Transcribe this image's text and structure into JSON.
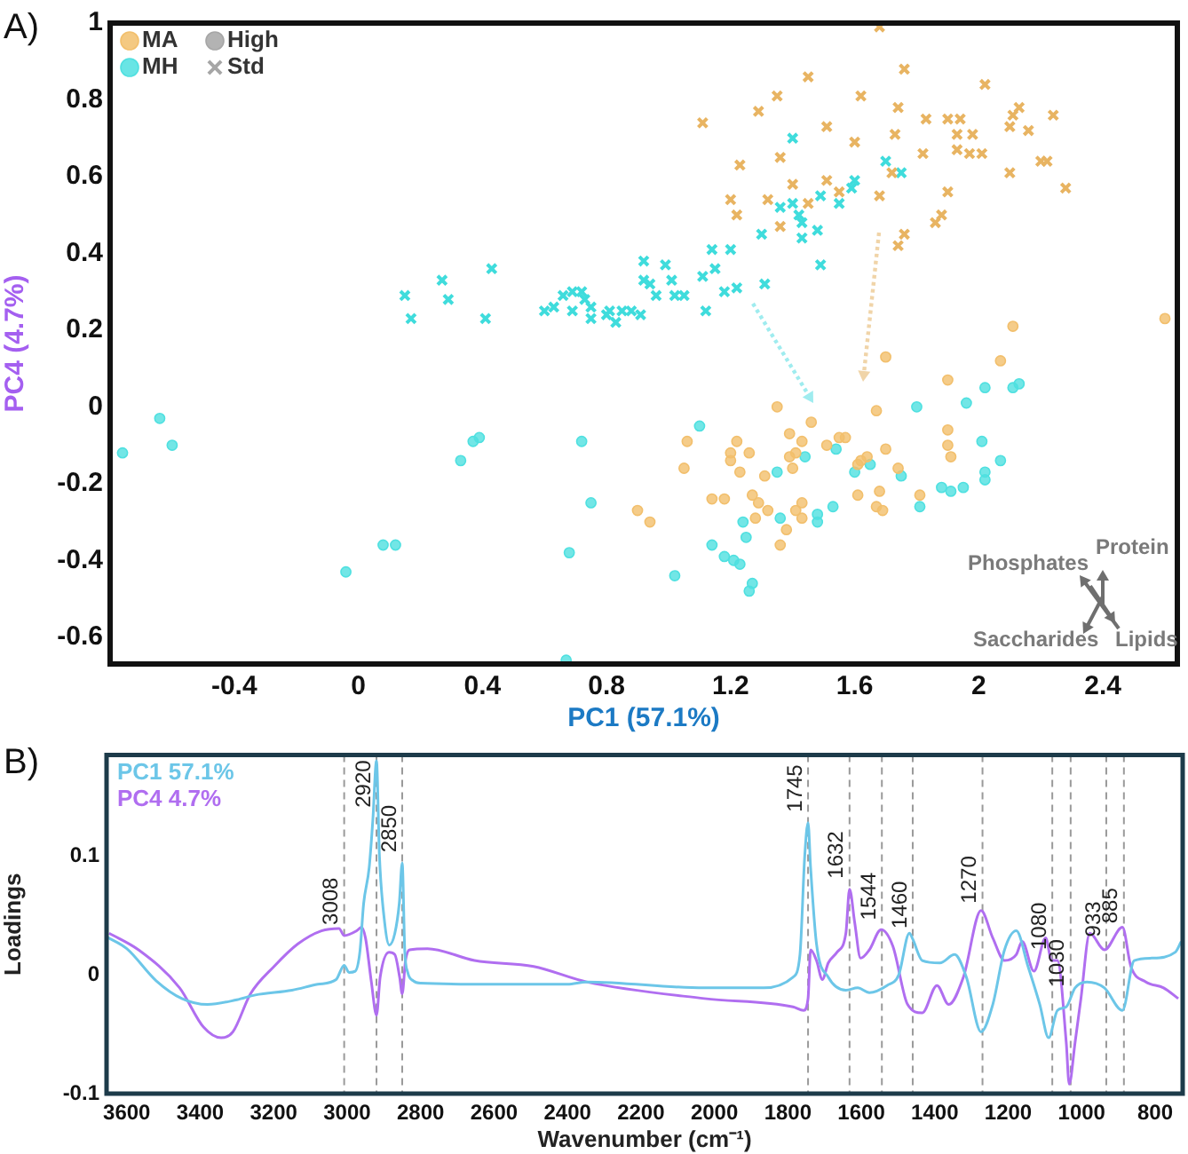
{
  "chart_data": [
    {
      "type": "scatter",
      "title": "A)",
      "xlabel": "PC1 (57.1%)",
      "ylabel": "PC4 (4.7%)",
      "xlim": [
        -0.8,
        2.64
      ],
      "ylim": [
        -0.67,
        1.0
      ],
      "xticks": [
        -0.4,
        0,
        0.4,
        0.8,
        1.2,
        1.6,
        2,
        2.4
      ],
      "yticks": [
        -0.6,
        -0.4,
        -0.2,
        0,
        0.2,
        0.4,
        0.6,
        0.8,
        1
      ],
      "grid": false,
      "legend": "top left",
      "annotations": [
        "Phosphates",
        "Protein",
        "Saccharides",
        "Lipids"
      ],
      "series": [
        {
          "name": "MA",
          "color": "#f2bf6c",
          "marker": "circle",
          "x": [
            1.06,
            1.05,
            1.2,
            1.26,
            1.23,
            1.31,
            1.18,
            1.57,
            1.55,
            1.7,
            2.07,
            1.9,
            1.67,
            1.35,
            1.46,
            1.39,
            2.6,
            2.11,
            1.41,
            1.43,
            1.51,
            1.39,
            1.4,
            1.64,
            1.62,
            1.61,
            1.7,
            1.74,
            1.9,
            1.9,
            1.91,
            1.22,
            1.2,
            1.14,
            1.27,
            1.29,
            1.32,
            1.28,
            1.38,
            1.41,
            1.43,
            1.43,
            1.61,
            1.68,
            1.67,
            1.69,
            1.81,
            0.9,
            0.94,
            1.36
          ],
          "values": [
            -0.09,
            -0.16,
            -0.12,
            -0.12,
            -0.17,
            -0.18,
            -0.24,
            -0.08,
            -0.08,
            0.13,
            0.12,
            0.07,
            -0.01,
            0.0,
            -0.04,
            -0.07,
            0.23,
            0.21,
            -0.12,
            -0.09,
            -0.1,
            -0.13,
            -0.16,
            -0.13,
            -0.14,
            -0.15,
            -0.11,
            -0.16,
            -0.06,
            -0.1,
            -0.13,
            -0.09,
            -0.14,
            -0.24,
            -0.23,
            -0.25,
            -0.27,
            -0.29,
            -0.32,
            -0.27,
            -0.29,
            -0.25,
            -0.23,
            -0.22,
            -0.26,
            -0.27,
            -0.23,
            -0.27,
            -0.3,
            -0.36
          ]
        },
        {
          "name": "MH",
          "color": "#4fe0e0",
          "marker": "circle",
          "x": [
            -0.76,
            -0.64,
            -0.6,
            0.33,
            0.37,
            0.39,
            0.72,
            0.08,
            0.12,
            -0.04,
            0.75,
            0.68,
            0.67,
            1.1,
            1.35,
            1.44,
            1.54,
            1.6,
            1.65,
            1.75,
            1.8,
            1.96,
            2.02,
            2.11,
            2.13,
            2.01,
            2.02,
            2.07,
            2.02,
            1.95,
            1.91,
            1.88,
            1.81,
            1.53,
            1.48,
            1.48,
            1.36,
            1.24,
            1.25,
            1.14,
            1.18,
            1.21,
            1.23,
            1.02,
            1.27,
            1.26
          ],
          "values": [
            -0.12,
            -0.03,
            -0.1,
            -0.14,
            -0.09,
            -0.08,
            -0.09,
            -0.36,
            -0.36,
            -0.43,
            -0.25,
            -0.38,
            -0.66,
            -0.05,
            -0.17,
            -0.13,
            -0.11,
            -0.17,
            -0.15,
            -0.18,
            0.0,
            0.01,
            0.05,
            0.05,
            0.06,
            -0.09,
            -0.17,
            -0.14,
            -0.19,
            -0.21,
            -0.22,
            -0.21,
            -0.26,
            -0.26,
            -0.28,
            -0.3,
            -0.29,
            -0.3,
            -0.34,
            -0.36,
            -0.39,
            -0.4,
            -0.41,
            -0.44,
            -0.46,
            -0.48
          ]
        },
        {
          "color": "#e8b462",
          "marker": "cross",
          "x": [
            1.68,
            1.82,
            1.9,
            1.94,
            1.93,
            1.98,
            1.9,
            2.01,
            2.1,
            2.13,
            2.16,
            2.1,
            2.2,
            1.76,
            1.45,
            1.35,
            1.62,
            1.11,
            1.29,
            1.51,
            1.74,
            1.83,
            2.02,
            2.24,
            1.6,
            1.73,
            1.36,
            1.23,
            1.93,
            1.97,
            1.72,
            1.51,
            1.4,
            1.2,
            1.32,
            1.45,
            1.55,
            1.68,
            1.22,
            1.36,
            1.88,
            1.86,
            1.76,
            1.74,
            2.28,
            2.22,
            2.11
          ],
          "values": [
            0.99,
            0.66,
            0.75,
            0.75,
            0.71,
            0.71,
            0.56,
            0.66,
            0.73,
            0.78,
            0.72,
            0.61,
            0.64,
            0.88,
            0.86,
            0.81,
            0.81,
            0.74,
            0.77,
            0.73,
            0.78,
            0.75,
            0.84,
            0.76,
            0.69,
            0.71,
            0.65,
            0.63,
            0.67,
            0.66,
            0.61,
            0.59,
            0.58,
            0.54,
            0.54,
            0.53,
            0.56,
            0.55,
            0.5,
            0.47,
            0.5,
            0.48,
            0.45,
            0.42,
            0.57,
            0.64,
            0.76
          ]
        },
        {
          "color": "#3fdcdc",
          "marker": "cross",
          "x": [
            0.15,
            0.17,
            0.27,
            0.29,
            0.43,
            0.41,
            0.6,
            0.63,
            0.66,
            0.69,
            0.72,
            0.69,
            0.73,
            0.75,
            0.75,
            0.81,
            0.83,
            0.94,
            0.96,
            1.02,
            1.3,
            1.4,
            1.43,
            1.43,
            1.48,
            1.49,
            1.59,
            1.6,
            1.75,
            1.42,
            0.8,
            0.85,
            0.88,
            0.91,
            0.92,
            0.92,
            0.99,
            1.01,
            1.05,
            1.11,
            1.12,
            1.14,
            1.15,
            1.18,
            1.2,
            1.22,
            1.31,
            1.36,
            1.4,
            1.49,
            1.55,
            1.7
          ],
          "values": [
            0.29,
            0.23,
            0.33,
            0.28,
            0.36,
            0.23,
            0.25,
            0.26,
            0.29,
            0.3,
            0.3,
            0.25,
            0.28,
            0.26,
            0.23,
            0.25,
            0.22,
            0.32,
            0.29,
            0.29,
            0.45,
            0.53,
            0.48,
            0.44,
            0.46,
            0.55,
            0.57,
            0.59,
            0.61,
            0.5,
            0.24,
            0.25,
            0.25,
            0.24,
            0.38,
            0.33,
            0.37,
            0.33,
            0.29,
            0.34,
            0.25,
            0.41,
            0.36,
            0.3,
            0.41,
            0.31,
            0.32,
            0.52,
            0.7,
            0.37,
            0.53,
            0.64
          ]
        },
        {
          "name": "High",
          "color": "#a6a6a6",
          "marker": "circle"
        },
        {
          "name": "Std",
          "color": "#a6a6a6",
          "marker": "cross"
        }
      ]
    },
    {
      "type": "line",
      "title": "B)",
      "xlabel": "Wavenumber (cm⁻¹)",
      "ylabel": "Loadings",
      "xlim": [
        3655,
        725
      ],
      "ylim": [
        -0.1,
        0.185
      ],
      "xticks": [
        3600,
        3400,
        3200,
        3000,
        2800,
        2600,
        2400,
        2200,
        2000,
        1800,
        1600,
        1400,
        1200,
        1000,
        800
      ],
      "yticks": [
        -0.1,
        0,
        0.1
      ],
      "grid": false,
      "legend": "top left",
      "marker": "none",
      "line_style": "solid",
      "ref_lines": [
        {
          "axis": "x",
          "value": 3008,
          "label": "3008",
          "color": "#9a9a9a",
          "line_style": "dashed"
        },
        {
          "axis": "x",
          "value": 2920,
          "label": "2920",
          "color": "#9a9a9a",
          "line_style": "dashed"
        },
        {
          "axis": "x",
          "value": 2850,
          "label": "2850",
          "color": "#9a9a9a",
          "line_style": "dashed"
        },
        {
          "axis": "x",
          "value": 1745,
          "label": "1745",
          "color": "#9a9a9a",
          "line_style": "dashed"
        },
        {
          "axis": "x",
          "value": 1632,
          "label": "1632",
          "color": "#9a9a9a",
          "line_style": "dashed"
        },
        {
          "axis": "x",
          "value": 1544,
          "label": "1544",
          "color": "#9a9a9a",
          "line_style": "dashed"
        },
        {
          "axis": "x",
          "value": 1460,
          "label": "1460",
          "color": "#9a9a9a",
          "line_style": "dashed"
        },
        {
          "axis": "x",
          "value": 1270,
          "label": "1270",
          "color": "#9a9a9a",
          "line_style": "dashed"
        },
        {
          "axis": "x",
          "value": 1080,
          "label": "1080",
          "color": "#9a9a9a",
          "line_style": "dashed"
        },
        {
          "axis": "x",
          "value": 1030,
          "label": "1030",
          "color": "#9a9a9a",
          "line_style": "dashed"
        },
        {
          "axis": "x",
          "value": 933,
          "label": "933",
          "color": "#9a9a9a",
          "line_style": "dashed"
        },
        {
          "axis": "x",
          "value": 885,
          "label": "885",
          "color": "#9a9a9a",
          "line_style": "dashed"
        }
      ],
      "series": [
        {
          "name": "PC1 57.1%",
          "color": "#6cc6e8",
          "x": [
            3655,
            3600,
            3520,
            3450,
            3380,
            3300,
            3250,
            3150,
            3080,
            3030,
            3008,
            2995,
            2978,
            2965,
            2955,
            2940,
            2930,
            2920,
            2912,
            2900,
            2885,
            2870,
            2858,
            2850,
            2843,
            2835,
            2820,
            2800,
            2600,
            2400,
            2348,
            2027,
            1866,
            1786,
            1767,
            1754,
            1745,
            1738,
            1722,
            1690,
            1642,
            1610,
            1578,
            1530,
            1498,
            1469,
            1460,
            1434,
            1386,
            1346,
            1314,
            1274,
            1242,
            1210,
            1178,
            1146,
            1114,
            1090,
            1066,
            1042,
            1018,
            986,
            938,
            889,
            857,
            809,
            745,
            729
          ],
          "values": [
            0.032,
            0.022,
            -0.005,
            -0.02,
            -0.025,
            -0.021,
            -0.017,
            -0.013,
            -0.008,
            -0.004,
            0.008,
            0.002,
            0.003,
            0.02,
            0.06,
            0.09,
            0.13,
            0.18,
            0.1,
            0.05,
            0.025,
            0.035,
            0.06,
            0.094,
            0.02,
            0.002,
            -0.005,
            -0.007,
            -0.008,
            -0.008,
            -0.006,
            -0.011,
            -0.011,
            -0.002,
            0.017,
            0.1,
            0.128,
            0.09,
            0.026,
            -0.002,
            -0.013,
            -0.011,
            -0.015,
            -0.009,
            0.0,
            0.035,
            0.03,
            0.012,
            0.01,
            0.017,
            -0.002,
            -0.048,
            -0.025,
            0.021,
            0.037,
            0.007,
            -0.025,
            -0.053,
            -0.03,
            -0.027,
            -0.011,
            -0.006,
            -0.011,
            -0.03,
            0.012,
            0.014,
            0.019,
            0.028
          ]
        },
        {
          "name": "PC4 4.7%",
          "color": "#b06ef0",
          "x": [
            3648,
            3568,
            3456,
            3391,
            3343,
            3311,
            3263,
            3199,
            3134,
            3070,
            3022,
            3008,
            2974,
            2961,
            2950,
            2934,
            2920,
            2910,
            2886,
            2870,
            2857,
            2850,
            2841,
            2830,
            2781,
            2653,
            2492,
            2348,
            2027,
            1786,
            1757,
            1745,
            1738,
            1722,
            1706,
            1690,
            1666,
            1642,
            1632,
            1618,
            1602,
            1578,
            1546,
            1514,
            1474,
            1434,
            1394,
            1362,
            1322,
            1274,
            1242,
            1210,
            1178,
            1162,
            1130,
            1098,
            1082,
            1066,
            1042,
            1034,
            1018,
            1002,
            978,
            938,
            889,
            866,
            825,
            777,
            737
          ],
          "values": [
            0.035,
            0.021,
            -0.011,
            -0.044,
            -0.053,
            -0.048,
            -0.016,
            0.007,
            0.026,
            0.037,
            0.039,
            0.033,
            0.037,
            0.04,
            0.031,
            -0.006,
            -0.034,
            -0.002,
            0.019,
            0.017,
            -0.002,
            -0.016,
            0.012,
            0.021,
            0.022,
            0.012,
            0.007,
            -0.006,
            -0.02,
            -0.027,
            -0.03,
            -0.02,
            0.021,
            0.012,
            -0.004,
            0.01,
            0.019,
            0.035,
            0.072,
            0.044,
            0.014,
            0.021,
            0.038,
            0.024,
            -0.025,
            -0.032,
            -0.009,
            -0.025,
            -0.002,
            0.054,
            0.031,
            0.012,
            0.017,
            0.028,
            0.003,
            0.031,
            0.012,
            0.012,
            -0.057,
            -0.092,
            -0.057,
            -0.02,
            0.035,
            0.021,
            0.04,
            0.007,
            -0.006,
            -0.011,
            -0.02
          ]
        }
      ]
    }
  ]
}
